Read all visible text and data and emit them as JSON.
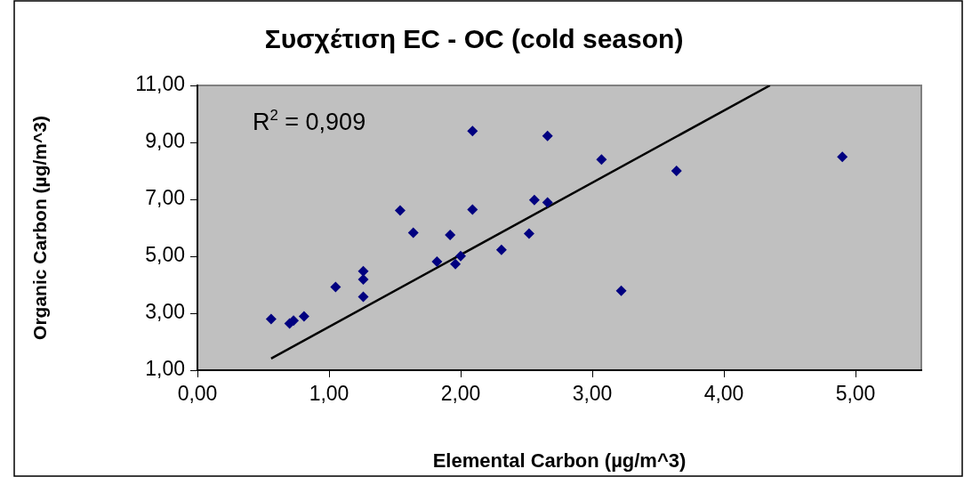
{
  "chart_data": {
    "type": "scatter",
    "title": "Συσχέτιση EC - OC (cold season)",
    "xlabel": "Elemental Carbon (µg/m^3)",
    "ylabel": "Organic Carbon (µg/m^3)",
    "annotations": [
      "R$^{2}$ = 0,909"
    ],
    "series": [
      {
        "color": "#000080",
        "x": [
          0.56,
          0.7,
          0.73,
          0.81,
          1.05,
          1.26,
          1.26,
          1.26,
          1.54,
          1.64,
          1.82,
          1.92,
          1.96,
          2.0,
          2.09,
          2.09,
          2.31,
          2.52,
          2.56,
          2.66,
          2.66,
          3.07,
          3.22,
          3.64,
          4.9
        ],
        "values": [
          2.8,
          2.64,
          2.74,
          2.89,
          3.92,
          4.48,
          4.19,
          3.58,
          6.61,
          5.83,
          4.81,
          5.75,
          4.73,
          5.01,
          9.4,
          6.64,
          5.23,
          5.8,
          6.98,
          9.23,
          6.89,
          8.4,
          3.79,
          8.0,
          8.49
        ]
      },
      {
        "type": "line",
        "color": "#000000",
        "x": [
          0.56,
          4.35
        ],
        "values": [
          1.41,
          11
        ],
        "marker": "none"
      }
    ],
    "xlim": [
      0,
      5.5
    ],
    "ylim": [
      1,
      11
    ],
    "xticks": [
      {
        "value": 0,
        "label": "0,00"
      },
      {
        "value": 1,
        "label": "1,00"
      },
      {
        "value": 2,
        "label": "2,00"
      },
      {
        "value": 3,
        "label": "3,00"
      },
      {
        "value": 4,
        "label": "4,00"
      },
      {
        "value": 5,
        "label": "5,00"
      }
    ],
    "yticks": [
      {
        "value": 1,
        "label": "1,00"
      },
      {
        "value": 3,
        "label": "3,00"
      },
      {
        "value": 5,
        "label": "5,00"
      },
      {
        "value": 7,
        "label": "7,00"
      },
      {
        "value": 9,
        "label": "9,00"
      },
      {
        "value": 11,
        "label": "11,00"
      }
    ],
    "grid": false,
    "legend": false,
    "marker": "diamond"
  }
}
